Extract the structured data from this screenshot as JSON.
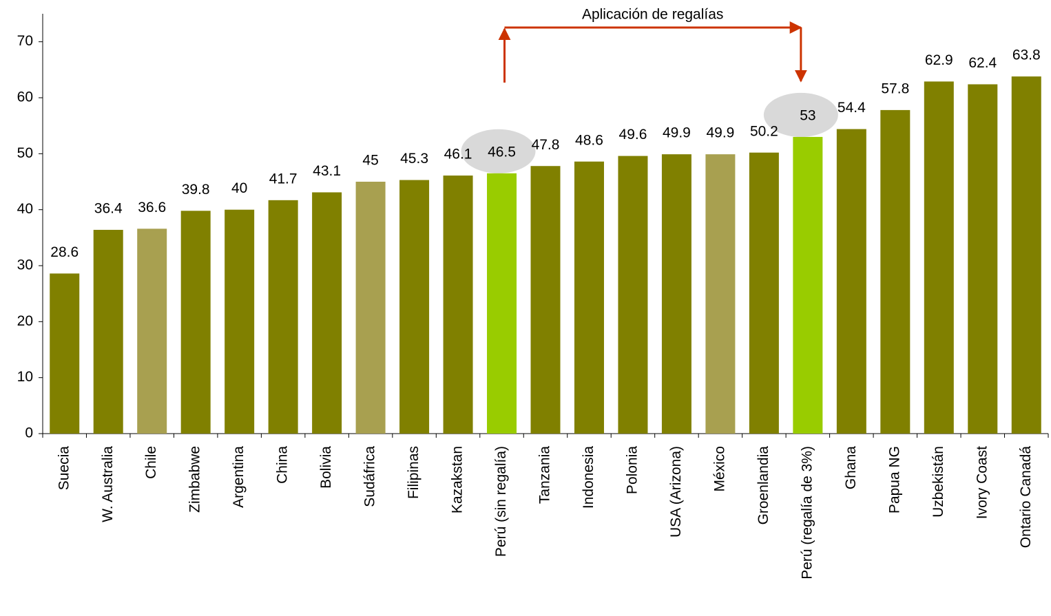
{
  "chart_data": {
    "type": "bar",
    "annotation": "Aplicación de regalías",
    "categories": [
      "Suecia",
      "W. Australia",
      "Chile",
      "Zimbabwe",
      "Argentina",
      "China",
      "Bolivia",
      "Sudáfrica",
      "Filipinas",
      "Kazakstan",
      "Perú (sin regalía)",
      "Tanzania",
      "Indonesia",
      "Polonia",
      "USA (Arizona)",
      "México",
      "Groenlandia",
      "Perú (regalía de 3%)",
      "Ghana",
      "Papua NG",
      "Uzbekistán",
      "Ivory Coast",
      "Ontario Canadá"
    ],
    "values": [
      28.6,
      36.4,
      36.6,
      39.8,
      40,
      41.7,
      43.1,
      45,
      45.3,
      46.1,
      46.5,
      47.8,
      48.6,
      49.6,
      49.9,
      49.9,
      50.2,
      53,
      54.4,
      57.8,
      62.9,
      62.4,
      63.8
    ],
    "colors": [
      "#808000",
      "#808000",
      "#a8a050",
      "#808000",
      "#808000",
      "#808000",
      "#808000",
      "#a8a050",
      "#808000",
      "#808000",
      "#99cc00",
      "#808000",
      "#808000",
      "#808000",
      "#808000",
      "#a8a050",
      "#808000",
      "#99cc00",
      "#808000",
      "#808000",
      "#808000",
      "#808000",
      "#808000"
    ],
    "ylim": [
      0,
      75
    ],
    "yticks": [
      0,
      10,
      20,
      30,
      40,
      50,
      60,
      70
    ],
    "grid": false
  }
}
